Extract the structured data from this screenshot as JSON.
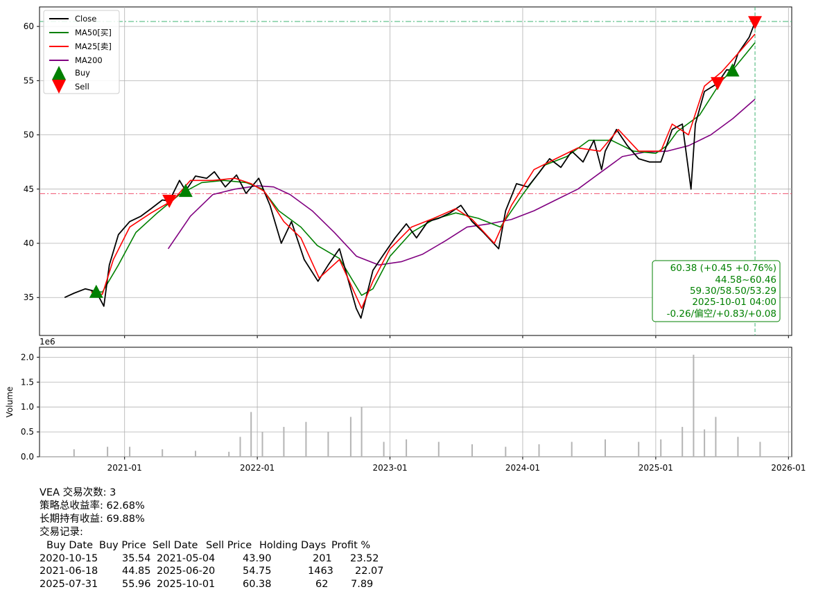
{
  "chart_data": [
    {
      "type": "line",
      "title": "",
      "xlabel": "",
      "ylabel": "",
      "ylim": [
        31.5,
        61.8
      ],
      "yticks": [
        35,
        40,
        45,
        50,
        55,
        60
      ],
      "grid": true,
      "legend_placement": "top-left",
      "legend": [
        "Close",
        "MA50[买]",
        "MA25[卖]",
        "MA200",
        "Buy",
        "Sell"
      ],
      "colors": {
        "Close": "#000000",
        "MA50[买]": "#008000",
        "MA25[卖]": "#ff0000",
        "MA200": "#800080",
        "Buy": "#008000",
        "Sell": "#ff0000"
      },
      "series": [
        {
          "name": "Close",
          "x": [
            "2020-07-20",
            "2020-08-15",
            "2020-09-15",
            "2020-10-15",
            "2020-11-05",
            "2020-11-20",
            "2020-12-15",
            "2021-01-15",
            "2021-02-15",
            "2021-03-15",
            "2021-04-15",
            "2021-05-04",
            "2021-06-01",
            "2021-06-18",
            "2021-07-15",
            "2021-08-15",
            "2021-09-05",
            "2021-10-05",
            "2021-11-05",
            "2021-12-01",
            "2022-01-05",
            "2022-02-05",
            "2022-03-08",
            "2022-04-05",
            "2022-05-10",
            "2022-06-17",
            "2022-07-15",
            "2022-08-15",
            "2022-09-30",
            "2022-10-13",
            "2022-11-15",
            "2022-12-15",
            "2023-01-15",
            "2023-02-15",
            "2023-03-15",
            "2023-04-15",
            "2023-05-15",
            "2023-06-15",
            "2023-07-15",
            "2023-08-15",
            "2023-09-15",
            "2023-10-27",
            "2023-11-15",
            "2023-12-15",
            "2024-01-15",
            "2024-02-15",
            "2024-03-15",
            "2024-04-15",
            "2024-05-15",
            "2024-06-15",
            "2024-07-15",
            "2024-08-05",
            "2024-08-15",
            "2024-09-15",
            "2024-10-15",
            "2024-11-15",
            "2024-12-15",
            "2025-01-15",
            "2025-02-15",
            "2025-03-15",
            "2025-04-08",
            "2025-04-20",
            "2025-05-15",
            "2025-06-20",
            "2025-07-15",
            "2025-07-31",
            "2025-08-15",
            "2025-09-15",
            "2025-10-01"
          ],
          "values": [
            35.0,
            35.4,
            35.8,
            35.54,
            34.2,
            38.0,
            40.8,
            42.0,
            42.5,
            43.2,
            44.0,
            43.9,
            45.8,
            44.85,
            46.2,
            46.0,
            46.6,
            45.2,
            46.3,
            44.6,
            46.0,
            43.5,
            40.0,
            42.0,
            38.5,
            36.5,
            38.0,
            39.5,
            34.0,
            33.1,
            37.5,
            39.0,
            40.5,
            41.8,
            40.5,
            42.0,
            42.3,
            42.8,
            43.5,
            42.0,
            41.0,
            39.5,
            43.0,
            45.5,
            45.2,
            46.5,
            47.8,
            47.0,
            48.5,
            47.5,
            49.5,
            46.8,
            48.5,
            50.5,
            49.0,
            47.8,
            47.5,
            47.5,
            50.5,
            51.0,
            45.0,
            51.0,
            54.0,
            54.75,
            56.0,
            55.96,
            57.5,
            59.0,
            60.38
          ]
        },
        {
          "name": "MA50[买]",
          "x": [
            "2020-10-01",
            "2020-11-01",
            "2020-12-15",
            "2021-02-01",
            "2021-04-01",
            "2021-06-01",
            "2021-08-01",
            "2021-10-01",
            "2021-12-01",
            "2022-01-15",
            "2022-03-01",
            "2022-05-01",
            "2022-06-15",
            "2022-08-15",
            "2022-10-15",
            "2022-11-15",
            "2023-01-01",
            "2023-03-01",
            "2023-05-01",
            "2023-07-01",
            "2023-09-01",
            "2023-11-01",
            "2024-01-01",
            "2024-03-01",
            "2024-05-01",
            "2024-07-01",
            "2024-09-01",
            "2024-11-01",
            "2025-01-01",
            "2025-02-01",
            "2025-03-01",
            "2025-05-01",
            "2025-07-01",
            "2025-08-01",
            "2025-10-01"
          ],
          "values": [
            35.6,
            35.5,
            38.0,
            41.0,
            42.8,
            44.5,
            45.6,
            45.8,
            45.6,
            45.0,
            43.0,
            41.5,
            39.8,
            38.6,
            35.2,
            35.8,
            38.8,
            41.0,
            42.2,
            42.8,
            42.3,
            41.5,
            44.5,
            47.2,
            48.0,
            49.5,
            49.5,
            48.5,
            48.3,
            49.0,
            50.3,
            51.8,
            55.0,
            56.0,
            58.5
          ]
        },
        {
          "name": "MA25[卖]",
          "x": [
            "2020-10-01",
            "2020-11-01",
            "2020-12-01",
            "2021-01-15",
            "2021-03-15",
            "2021-05-15",
            "2021-07-01",
            "2021-09-01",
            "2021-11-01",
            "2021-12-15",
            "2022-01-20",
            "2022-03-15",
            "2022-05-01",
            "2022-06-20",
            "2022-08-15",
            "2022-10-15",
            "2022-11-15",
            "2023-01-01",
            "2023-03-01",
            "2023-05-01",
            "2023-07-01",
            "2023-08-15",
            "2023-10-15",
            "2023-12-01",
            "2024-02-01",
            "2024-04-01",
            "2024-06-01",
            "2024-08-01",
            "2024-09-20",
            "2024-11-15",
            "2025-01-15",
            "2025-02-15",
            "2025-04-01",
            "2025-05-15",
            "2025-07-01",
            "2025-08-15",
            "2025-10-01"
          ],
          "values": [
            35.5,
            35.3,
            38.5,
            41.5,
            42.8,
            44.0,
            45.8,
            45.8,
            46.0,
            45.5,
            44.8,
            42.0,
            40.5,
            36.8,
            38.5,
            34.0,
            36.5,
            39.5,
            41.5,
            42.3,
            43.2,
            42.2,
            40.0,
            43.5,
            46.8,
            47.8,
            48.8,
            48.5,
            50.5,
            48.5,
            48.5,
            51.0,
            50.0,
            54.5,
            55.8,
            57.5,
            59.3
          ]
        },
        {
          "name": "MA200",
          "x": [
            "2021-05-01",
            "2021-07-01",
            "2021-09-01",
            "2021-11-01",
            "2022-01-01",
            "2022-02-15",
            "2022-04-01",
            "2022-06-01",
            "2022-08-01",
            "2022-10-01",
            "2022-12-01",
            "2023-02-01",
            "2023-04-01",
            "2023-06-01",
            "2023-08-01",
            "2023-10-01",
            "2023-12-01",
            "2024-02-01",
            "2024-04-01",
            "2024-06-01",
            "2024-08-01",
            "2024-10-01",
            "2024-12-01",
            "2025-02-01",
            "2025-04-01",
            "2025-06-01",
            "2025-08-01",
            "2025-10-01"
          ],
          "values": [
            39.5,
            42.5,
            44.5,
            45.0,
            45.3,
            45.2,
            44.5,
            43.0,
            41.0,
            38.8,
            38.0,
            38.3,
            39.0,
            40.2,
            41.5,
            41.8,
            42.2,
            43.0,
            44.0,
            45.0,
            46.5,
            48.0,
            48.4,
            48.5,
            49.0,
            50.0,
            51.5,
            53.29
          ]
        },
        {
          "name": "Buy",
          "x": [
            "2020-10-15",
            "2021-06-18",
            "2025-07-31"
          ],
          "values": [
            35.54,
            44.85,
            55.96
          ]
        },
        {
          "name": "Sell",
          "x": [
            "2021-05-04",
            "2025-06-20",
            "2025-10-01"
          ],
          "values": [
            43.9,
            54.75,
            60.38
          ]
        }
      ],
      "hlines": [
        {
          "value": 60.46,
          "color": "#3cb371",
          "style": "dashdot"
        },
        {
          "value": 44.58,
          "color": "#f0506e",
          "style": "dashdot"
        }
      ],
      "vline": {
        "x": "2025-10-01",
        "color": "#3cb371",
        "style": "dashed"
      },
      "annotation": [
        "60.38 (+0.45 +0.76%)",
        "44.58~60.46",
        "59.30/58.50/53.29",
        "2025-10-01 04:00",
        "-0.26/偏空/+0.83/+0.08"
      ]
    },
    {
      "type": "bar",
      "ylabel": "Volume",
      "offset_label": "1e6",
      "ylim": [
        0,
        2.2
      ],
      "yticks": [
        "0.0",
        "0.5",
        "1.0",
        "1.5",
        "2.0"
      ],
      "xticks": [
        "2021-01",
        "2022-01",
        "2023-01",
        "2024-01",
        "2025-01",
        "2026-01"
      ],
      "grid": true,
      "bar_color": "#b4b4b4",
      "series": [
        {
          "name": "Volume",
          "unit": "millions",
          "x": [
            "2020-08",
            "2020-11",
            "2021-01",
            "2021-04",
            "2021-07",
            "2021-10",
            "2021-11",
            "2021-12",
            "2022-01",
            "2022-03",
            "2022-05",
            "2022-07",
            "2022-09",
            "2022-10",
            "2022-12",
            "2023-02",
            "2023-05",
            "2023-08",
            "2023-11",
            "2024-02",
            "2024-05",
            "2024-08",
            "2024-11",
            "2025-01",
            "2025-03",
            "2025-04",
            "2025-05",
            "2025-06",
            "2025-08",
            "2025-10"
          ],
          "values": [
            0.15,
            0.2,
            0.2,
            0.15,
            0.12,
            0.1,
            0.4,
            0.9,
            0.5,
            0.6,
            0.7,
            0.5,
            0.8,
            1.0,
            0.3,
            0.35,
            0.3,
            0.25,
            0.2,
            0.25,
            0.3,
            0.35,
            0.3,
            0.35,
            0.6,
            2.05,
            0.55,
            0.8,
            0.4,
            0.3
          ]
        }
      ]
    }
  ],
  "summary": {
    "trades_line": "VEA 交易次数: 3",
    "strategy_return_line": "策略总收益率: 62.68%",
    "hold_return_line": "长期持有收益: 69.88%",
    "records_label": "交易记录:"
  },
  "trades": {
    "headers": [
      "Buy Date",
      "Buy Price",
      "Sell Date",
      "Sell Price",
      "Holding Days",
      "Profit %"
    ],
    "rows": [
      [
        "2020-10-15",
        "35.54",
        "2021-05-04",
        "43.90",
        "201",
        "23.52"
      ],
      [
        "2021-06-18",
        "44.85",
        "2025-06-20",
        "54.75",
        "1463",
        "22.07"
      ],
      [
        "2025-07-31",
        "55.96",
        "2025-10-01",
        "60.38",
        "62",
        "7.89"
      ]
    ]
  }
}
